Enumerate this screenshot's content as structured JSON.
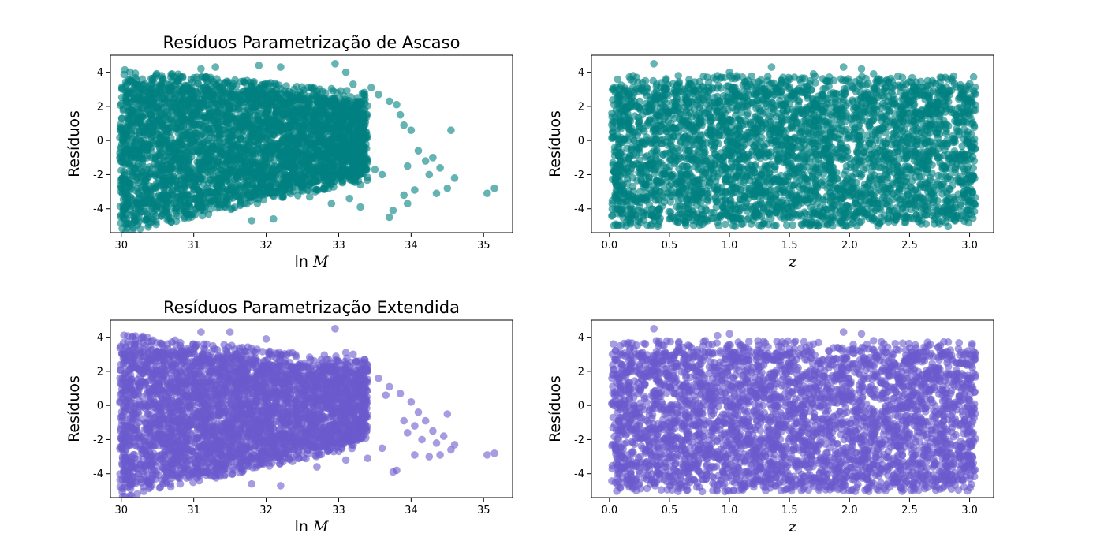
{
  "colors": {
    "teal": "#008080",
    "purple": "#6A5ACD"
  },
  "chart_data": [
    {
      "type": "scatter",
      "title": "Resíduos Parametrização de Ascaso",
      "xlabel_fn": "ln",
      "xlabel_var": "M",
      "ylabel": "Resíduos",
      "xlim": [
        29.85,
        35.4
      ],
      "ylim": [
        -5.4,
        5.0
      ],
      "xticks": [
        30,
        31,
        32,
        33,
        34,
        35
      ],
      "yticks": [
        -4,
        -2,
        0,
        2,
        4
      ],
      "color": "#008080",
      "opacity": 0.6,
      "band": {
        "x_min": 29.98,
        "x_max": 33.4,
        "top_start": 3.6,
        "top_end": 2.3,
        "bottom_start": -5.0,
        "bottom_end": -1.9
      },
      "outliers": [
        [
          31.1,
          4.2
        ],
        [
          31.3,
          4.3
        ],
        [
          31.9,
          4.4
        ],
        [
          32.2,
          4.3
        ],
        [
          32.95,
          4.5
        ],
        [
          33.1,
          4.0
        ],
        [
          33.45,
          3.1
        ],
        [
          33.2,
          3.3
        ],
        [
          33.55,
          2.7
        ],
        [
          33.7,
          2.3
        ],
        [
          33.85,
          1.5
        ],
        [
          34.0,
          0.6
        ],
        [
          34.1,
          -0.6
        ],
        [
          34.2,
          -1.2
        ],
        [
          34.4,
          -1.6
        ],
        [
          34.55,
          0.6
        ],
        [
          34.6,
          -2.2
        ],
        [
          34.5,
          -2.8
        ],
        [
          34.35,
          -3.1
        ],
        [
          34.05,
          -2.9
        ],
        [
          33.9,
          -3.2
        ],
        [
          33.75,
          -4.1
        ],
        [
          33.7,
          -4.5
        ],
        [
          33.3,
          -3.9
        ],
        [
          32.9,
          -3.7
        ],
        [
          32.6,
          -3.3
        ],
        [
          33.15,
          -3.4
        ],
        [
          35.05,
          -3.1
        ],
        [
          35.15,
          -2.8
        ],
        [
          33.3,
          -2.6
        ],
        [
          33.6,
          -2.0
        ],
        [
          33.95,
          -1.5
        ],
        [
          34.3,
          -1.0
        ],
        [
          33.5,
          -1.7
        ],
        [
          32.1,
          -4.6
        ],
        [
          31.8,
          -4.7
        ],
        [
          33.95,
          -3.7
        ],
        [
          34.25,
          -2.0
        ],
        [
          33.8,
          2.1
        ],
        [
          33.9,
          0.9
        ]
      ]
    },
    {
      "type": "scatter",
      "title": "",
      "xlabel_fn": "",
      "xlabel_var": "z",
      "ylabel": "Resíduos",
      "xlim": [
        -0.15,
        3.2
      ],
      "ylim": [
        -5.4,
        5.0
      ],
      "xticks": [
        0.0,
        0.5,
        1.0,
        1.5,
        2.0,
        2.5,
        3.0
      ],
      "xtick_labels": [
        "0.0",
        "0.5",
        "1.0",
        "1.5",
        "2.0",
        "2.5",
        "3.0"
      ],
      "yticks": [
        -4,
        -2,
        0,
        2,
        4
      ],
      "color": "#008080",
      "opacity": 0.6,
      "band": {
        "x_min": 0.02,
        "x_max": 3.05,
        "top": 3.2,
        "bottom": -4.6
      },
      "outliers": [
        [
          0.37,
          4.5
        ],
        [
          1.0,
          4.0
        ],
        [
          1.35,
          4.3
        ],
        [
          1.95,
          4.3
        ],
        [
          2.1,
          4.2
        ],
        [
          2.65,
          3.5
        ],
        [
          0.05,
          2.8
        ],
        [
          0.3,
          3.5
        ],
        [
          2.95,
          2.7
        ],
        [
          1.7,
          3.9
        ],
        [
          0.9,
          3.8
        ],
        [
          2.2,
          3.9
        ],
        [
          0.2,
          -3.3
        ],
        [
          0.1,
          -3.0
        ],
        [
          0.5,
          -4.6
        ],
        [
          1.1,
          -4.9
        ],
        [
          2.8,
          -4.8
        ],
        [
          2.9,
          -4.5
        ],
        [
          3.0,
          -3.5
        ],
        [
          0.35,
          -4.9
        ],
        [
          1.6,
          -4.9
        ],
        [
          2.4,
          -4.3
        ],
        [
          1.95,
          -5.0
        ],
        [
          0.75,
          -4.8
        ],
        [
          2.6,
          -4.0
        ],
        [
          0.15,
          -2.5
        ]
      ]
    },
    {
      "type": "scatter",
      "title": "Resíduos Parametrização Extendida",
      "xlabel_fn": "ln",
      "xlabel_var": "M",
      "ylabel": "Resíduos",
      "xlim": [
        29.85,
        35.4
      ],
      "ylim": [
        -5.4,
        5.0
      ],
      "xticks": [
        30,
        31,
        32,
        33,
        34,
        35
      ],
      "yticks": [
        -4,
        -2,
        0,
        2,
        4
      ],
      "color": "#6A5ACD",
      "opacity": 0.6,
      "band": {
        "x_min": 29.98,
        "x_max": 33.4,
        "top_start": 3.6,
        "top_end": 2.1,
        "bottom_start": -5.0,
        "bottom_end": -1.9
      },
      "outliers": [
        [
          31.1,
          4.3
        ],
        [
          31.5,
          4.3
        ],
        [
          32.0,
          3.9
        ],
        [
          32.95,
          4.5
        ],
        [
          33.1,
          3.1
        ],
        [
          33.2,
          3.0
        ],
        [
          33.4,
          2.1
        ],
        [
          33.55,
          1.6
        ],
        [
          33.7,
          1.1
        ],
        [
          33.85,
          0.7
        ],
        [
          34.0,
          0.2
        ],
        [
          34.1,
          -0.4
        ],
        [
          34.2,
          -0.9
        ],
        [
          34.3,
          -1.5
        ],
        [
          34.45,
          -1.8
        ],
        [
          34.6,
          -2.3
        ],
        [
          34.55,
          -2.6
        ],
        [
          34.4,
          -2.9
        ],
        [
          34.25,
          -3.0
        ],
        [
          34.05,
          -2.9
        ],
        [
          33.8,
          -3.8
        ],
        [
          33.75,
          -3.9
        ],
        [
          33.4,
          -3.1
        ],
        [
          33.1,
          -3.2
        ],
        [
          32.7,
          -3.6
        ],
        [
          35.05,
          -2.9
        ],
        [
          35.15,
          -2.8
        ],
        [
          33.6,
          -2.5
        ],
        [
          33.95,
          -1.6
        ],
        [
          34.5,
          -0.5
        ],
        [
          34.15,
          -2.0
        ],
        [
          32.2,
          -4.7
        ],
        [
          31.8,
          -4.6
        ],
        [
          33.3,
          -1.9
        ],
        [
          34.35,
          -2.2
        ],
        [
          33.9,
          -0.9
        ],
        [
          33.65,
          0.6
        ],
        [
          34.05,
          -1.2
        ]
      ]
    },
    {
      "type": "scatter",
      "title": "",
      "xlabel_fn": "",
      "xlabel_var": "z",
      "ylabel": "Resíduos",
      "xlim": [
        -0.15,
        3.2
      ],
      "ylim": [
        -5.4,
        5.0
      ],
      "xticks": [
        0.0,
        0.5,
        1.0,
        1.5,
        2.0,
        2.5,
        3.0
      ],
      "xtick_labels": [
        "0.0",
        "0.5",
        "1.0",
        "1.5",
        "2.0",
        "2.5",
        "3.0"
      ],
      "yticks": [
        -4,
        -2,
        0,
        2,
        4
      ],
      "color": "#6A5ACD",
      "opacity": 0.6,
      "band": {
        "x_min": 0.02,
        "x_max": 3.05,
        "top": 3.2,
        "bottom": -4.6
      },
      "outliers": [
        [
          0.37,
          4.5
        ],
        [
          0.9,
          4.1
        ],
        [
          1.0,
          4.2
        ],
        [
          1.95,
          4.3
        ],
        [
          2.1,
          4.2
        ],
        [
          2.65,
          3.7
        ],
        [
          0.05,
          3.2
        ],
        [
          0.3,
          3.6
        ],
        [
          2.95,
          3.0
        ],
        [
          1.7,
          3.6
        ],
        [
          2.2,
          3.8
        ],
        [
          0.15,
          -2.9
        ],
        [
          0.05,
          -2.6
        ],
        [
          0.25,
          -4.0
        ],
        [
          0.5,
          -4.7
        ],
        [
          1.1,
          -4.9
        ],
        [
          2.4,
          -4.5
        ],
        [
          2.85,
          -4.9
        ],
        [
          2.8,
          -3.9
        ],
        [
          3.0,
          -3.4
        ],
        [
          1.6,
          -5.0
        ],
        [
          1.95,
          -5.0
        ],
        [
          0.75,
          -4.8
        ],
        [
          2.6,
          -4.2
        ],
        [
          2.3,
          -5.0
        ]
      ]
    }
  ]
}
